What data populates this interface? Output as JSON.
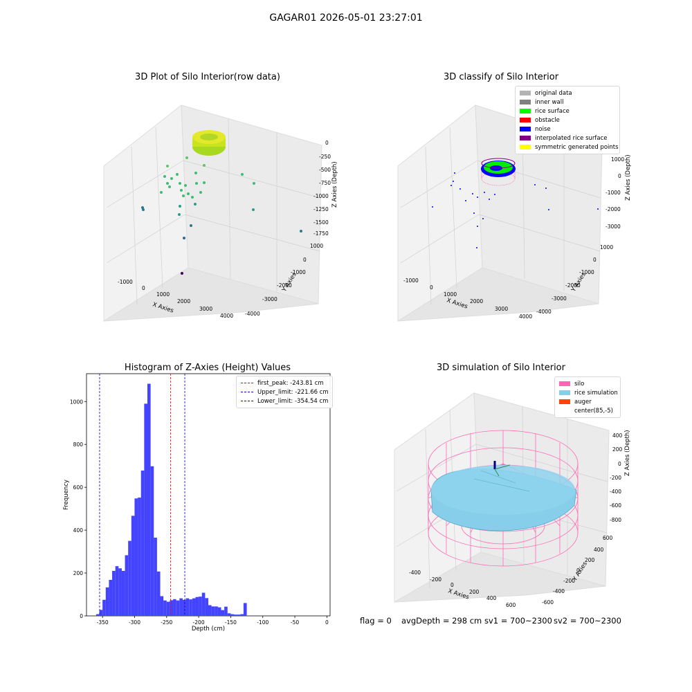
{
  "page": {
    "title": "GAGAR01 2026-05-01 23:27:01"
  },
  "footer": {
    "flag": "flag = 0",
    "avg_depth": "avgDepth = 298 cm",
    "sv1": "sv1 = 700~2300",
    "sv2": "sv2 = 700~2300"
  },
  "chart_data": [
    {
      "type": "scatter",
      "title": "3D Plot of Silo Interior(row data)",
      "xlabel": "X Axies",
      "ylabel": "Y Axies",
      "zlabel": "Z Axies (Depth)",
      "x_ticks": [
        "-1000",
        "0",
        "1000",
        "2000",
        "3000",
        "4000"
      ],
      "y_ticks": [
        "1000",
        "0",
        "-1000",
        "-2000",
        "-3000",
        "-4000"
      ],
      "z_ticks": [
        "0",
        "-250",
        "-500",
        "-750",
        "-1000",
        "-1250",
        "-1500",
        "-1750"
      ],
      "colormap": "viridis",
      "grid": true
    },
    {
      "type": "scatter",
      "title": "3D classify of Silo Interior",
      "xlabel": "X Axies",
      "ylabel": "Y Axies",
      "zlabel": "Z Axies (Depth)",
      "x_ticks": [
        "-1000",
        "0",
        "1000",
        "2000",
        "3000",
        "4000"
      ],
      "y_ticks": [
        "1000",
        "0",
        "-1000",
        "-2000",
        "-3000",
        "-4000"
      ],
      "z_ticks": [
        "1000",
        "0",
        "-1000",
        "-2000",
        "-3000"
      ],
      "legend_position": "top-right",
      "legend": [
        {
          "label": "original data",
          "color": "#b3b3b3"
        },
        {
          "label": "inner wall",
          "color": "#808080"
        },
        {
          "label": "rice surface",
          "color": "#00ff00"
        },
        {
          "label": "obstacle",
          "color": "#ff0000"
        },
        {
          "label": "noise",
          "color": "#0000ff"
        },
        {
          "label": "interpolated rice surface",
          "color": "#800080"
        },
        {
          "label": "symmetric generated points",
          "color": "#ffff00"
        }
      ],
      "grid": true
    },
    {
      "type": "bar",
      "title": "Histogram of Z-Axies (Height) Values",
      "xlabel": "Depth (cm)",
      "ylabel": "Frequency",
      "xlim": [
        -375,
        5
      ],
      "ylim": [
        0,
        1130
      ],
      "x_ticks": [
        -350,
        -300,
        -250,
        -200,
        -150,
        -100,
        -50,
        0
      ],
      "y_ticks": [
        0,
        200,
        400,
        600,
        800,
        1000
      ],
      "bin_start": -360,
      "bin_width": 5,
      "values": [
        8,
        28,
        75,
        133,
        168,
        210,
        232,
        222,
        210,
        283,
        350,
        467,
        548,
        552,
        678,
        990,
        1083,
        698,
        365,
        207,
        92,
        72,
        66,
        73,
        78,
        72,
        82,
        75,
        82,
        77,
        82,
        88,
        90,
        108,
        83,
        50,
        44,
        44,
        40,
        27,
        43,
        12,
        8,
        6,
        6,
        8,
        60
      ],
      "bar_color": "#4444ff",
      "legend_position": "top-right",
      "lines": [
        {
          "label": "first_peak: -243.81 cm",
          "x": -243.81,
          "color": "#ff0000"
        },
        {
          "label": "Upper_limit: -221.66 cm",
          "x": -221.66,
          "color": "#0000cc"
        },
        {
          "label": "Lower_limit: -354.54 cm",
          "x": -354.54,
          "color": "#0000cc"
        }
      ]
    },
    {
      "type": "scatter",
      "title": "3D simulation of Silo Interior",
      "xlabel": "X Axies",
      "ylabel": "Y Axies",
      "zlabel": "Z Axies (Depth)",
      "x_ticks": [
        "-400",
        "-200",
        "0",
        "200",
        "400",
        "600"
      ],
      "y_ticks": [
        "600",
        "400",
        "200",
        "0",
        "-200",
        "-400",
        "-600"
      ],
      "z_ticks": [
        "400",
        "200",
        "0",
        "-200",
        "-400",
        "-600",
        "-800"
      ],
      "legend_position": "top-right",
      "legend": [
        {
          "label": "silo",
          "color": "#ff69b4"
        },
        {
          "label": "rice simulation",
          "color": "#87ceeb"
        },
        {
          "label": "auger",
          "color": "#ff4500"
        },
        {
          "label": "center(85,-5)",
          "color": ""
        }
      ],
      "grid": true
    }
  ]
}
